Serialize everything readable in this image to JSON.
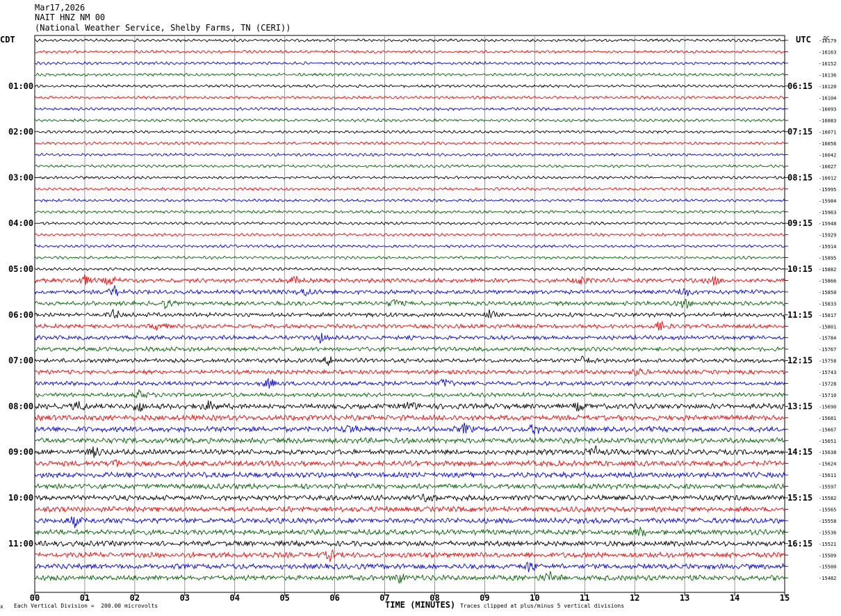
{
  "header": {
    "date": "Mar17,2026",
    "station": "NAIT HNZ NM 00",
    "source": "(National Weather Service, Shelby Farms, TN (CERI))"
  },
  "left_axis_title": "CDT",
  "right_axis_title": "UTC",
  "dc_title": "DC",
  "footer": {
    "mark": "x",
    "scale_note": "Each Vertical Division =  200.00 microvolts",
    "clip_note": "Traces clipped at plus/minus 5 vertical divisions"
  },
  "colors": {
    "black": "#000000",
    "red": "#ff0000",
    "blue": "#0000ff",
    "green": "#006400",
    "grid": "#808080"
  },
  "chart_data": {
    "type": "line",
    "title": "NAIT HNZ NM 00",
    "xlabel": "TIME (MINUTES)",
    "ylabel": "",
    "x_ticks": [
      "00",
      "01",
      "02",
      "03",
      "04",
      "05",
      "06",
      "07",
      "08",
      "09",
      "10",
      "11",
      "12",
      "13",
      "14",
      "15"
    ],
    "xlim": [
      0,
      15
    ],
    "traces_per_hour": 4,
    "trace_color_cycle": [
      "black",
      "red",
      "blue",
      "green"
    ],
    "left_hour_labels": [
      "01:00",
      "02:00",
      "03:00",
      "04:00",
      "05:00",
      "06:00",
      "07:00",
      "08:00",
      "09:00",
      "10:00",
      "11:00"
    ],
    "right_hour_labels": [
      "06:15",
      "07:15",
      "08:15",
      "09:15",
      "10:15",
      "11:15",
      "12:15",
      "13:15",
      "14:15",
      "15:15",
      "16:15"
    ],
    "dc_offsets": [
      "-16179",
      "-16163",
      "-16152",
      "-16136",
      "-16120",
      "-16104",
      "-16093",
      "-16083",
      "-16071",
      "-16056",
      "-16042",
      "-16027",
      "-16012",
      "-15995",
      "-15984",
      "-15963",
      "-15948",
      "-15929",
      "-15914",
      "-15895",
      "-15882",
      "-15866",
      "-15850",
      "-15833",
      "-15817",
      "-15801",
      "-15784",
      "-15767",
      "-15758",
      "-15743",
      "-15728",
      "-15710",
      "-15690",
      "-15681",
      "-15667",
      "-15651",
      "-15638",
      "-15624",
      "-15611",
      "-15597",
      "-15582",
      "-15565",
      "-15558",
      "-15536",
      "-15521",
      "-15509",
      "-15500",
      "-15482"
    ],
    "notable_events_minutes": [
      {
        "trace": 21,
        "minutes": [
          1.0,
          1.5,
          5.2,
          10.9,
          13.6
        ]
      },
      {
        "trace": 22,
        "minutes": [
          1.6,
          5.4,
          13.0
        ]
      },
      {
        "trace": 23,
        "minutes": [
          2.6,
          7.2,
          13.0
        ]
      },
      {
        "trace": 24,
        "minutes": [
          1.6,
          9.1,
          15.0
        ]
      },
      {
        "trace": 25,
        "minutes": [
          2.5,
          12.5
        ]
      },
      {
        "trace": 26,
        "minutes": [
          5.7
        ]
      },
      {
        "trace": 28,
        "minutes": [
          5.9,
          11.0
        ]
      },
      {
        "trace": 29,
        "minutes": [
          12.1
        ]
      },
      {
        "trace": 30,
        "minutes": [
          4.7,
          8.2
        ]
      },
      {
        "trace": 31,
        "minutes": [
          2.1
        ]
      },
      {
        "trace": 32,
        "minutes": [
          0.9,
          2.1,
          3.5,
          7.5,
          10.9
        ]
      },
      {
        "trace": 34,
        "minutes": [
          6.3,
          8.6,
          10.0
        ]
      },
      {
        "trace": 36,
        "minutes": [
          1.2,
          11.2
        ]
      },
      {
        "trace": 37,
        "minutes": [
          1.6
        ]
      },
      {
        "trace": 40,
        "minutes": [
          7.9
        ]
      },
      {
        "trace": 42,
        "minutes": [
          0.8
        ]
      },
      {
        "trace": 43,
        "minutes": [
          12.1
        ]
      },
      {
        "trace": 45,
        "minutes": [
          5.9
        ]
      },
      {
        "trace": 46,
        "minutes": [
          9.9
        ]
      },
      {
        "trace": 47,
        "minutes": [
          10.3,
          7.3
        ]
      }
    ]
  }
}
